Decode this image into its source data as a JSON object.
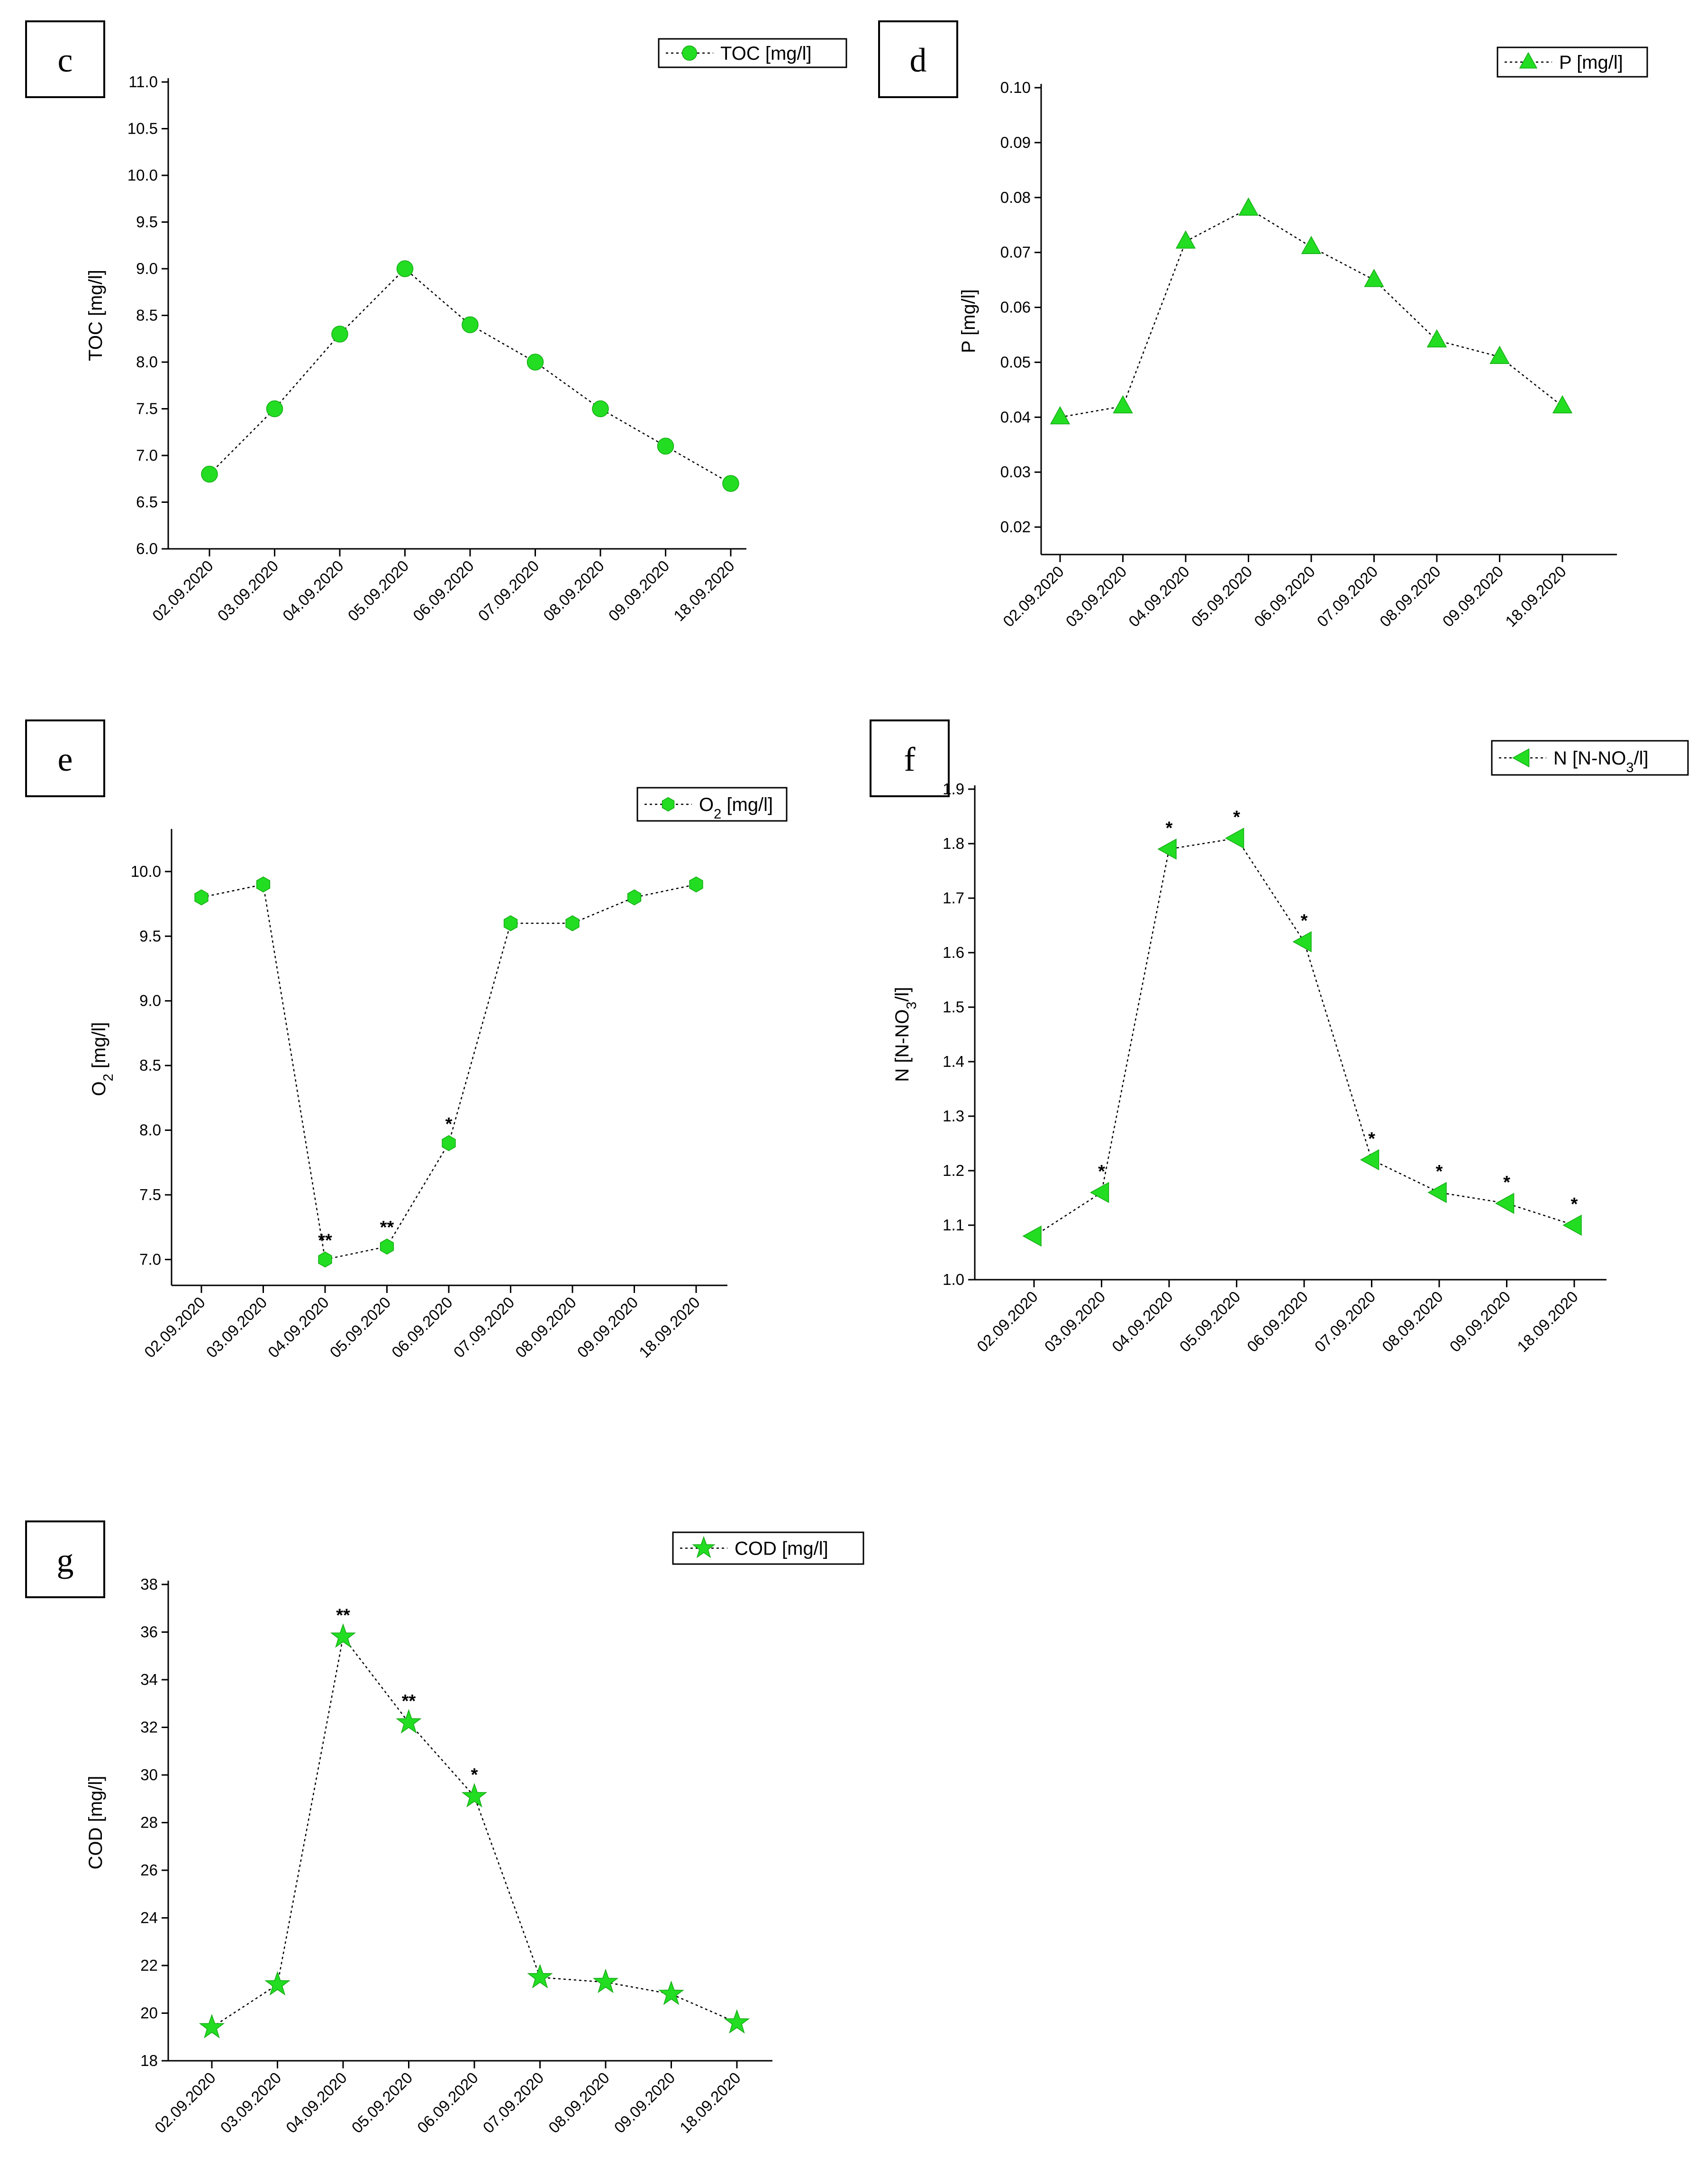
{
  "figure": {
    "marker_color": "#22dd22",
    "line_color": "#000000"
  },
  "chart_data": [
    {
      "id": "c",
      "type": "line",
      "panel_letter": "c",
      "ylabel": "TOC [mg/l]",
      "legend": "TOC [mg/l]",
      "marker": "circle",
      "categories": [
        "02.09.2020",
        "03.09.2020",
        "04.09.2020",
        "05.09.2020",
        "06.09.2020",
        "07.09.2020",
        "08.09.2020",
        "09.09.2020",
        "18.09.2020"
      ],
      "values": [
        6.8,
        7.5,
        8.3,
        9.0,
        8.4,
        8.0,
        7.5,
        7.1,
        6.7
      ],
      "annotations": [
        "",
        "",
        "",
        "",
        "",
        "",
        "",
        "",
        ""
      ],
      "ylim": [
        6.0,
        11.0
      ],
      "yticks": [
        "6.0",
        "6.5",
        "7.0",
        "7.5",
        "8.0",
        "8.5",
        "9.0",
        "9.5",
        "10.0",
        "10.5",
        "11.0"
      ]
    },
    {
      "id": "d",
      "type": "line",
      "panel_letter": "d",
      "ylabel": "P [mg/l]",
      "legend": "P [mg/l]",
      "marker": "triangle-up",
      "categories": [
        "02.09.2020",
        "03.09.2020",
        "04.09.2020",
        "05.09.2020",
        "06.09.2020",
        "07.09.2020",
        "08.09.2020",
        "09.09.2020",
        "18.09.2020"
      ],
      "values": [
        0.04,
        0.042,
        0.072,
        0.078,
        0.071,
        0.065,
        0.054,
        0.051,
        0.042
      ],
      "annotations": [
        "",
        "",
        "",
        "",
        "",
        "",
        "",
        "",
        ""
      ],
      "ylim": [
        0.015,
        0.1
      ],
      "yticks": [
        "0.02",
        "0.03",
        "0.04",
        "0.05",
        "0.06",
        "0.07",
        "0.08",
        "0.09",
        "0.10"
      ]
    },
    {
      "id": "e",
      "type": "line",
      "panel_letter": "e",
      "ylabel": "O₂ [mg/l]",
      "legend": "O₂ [mg/l]",
      "marker": "hexagon",
      "categories": [
        "02.09.2020",
        "03.09.2020",
        "04.09.2020",
        "05.09.2020",
        "06.09.2020",
        "07.09.2020",
        "08.09.2020",
        "09.09.2020",
        "18.09.2020"
      ],
      "values": [
        9.8,
        9.9,
        7.0,
        7.1,
        7.9,
        9.6,
        9.6,
        9.8,
        9.9
      ],
      "annotations": [
        "",
        "",
        "**",
        "**",
        "*",
        "",
        "",
        "",
        ""
      ],
      "ylim": [
        6.8,
        10.3
      ],
      "yticks": [
        "7.0",
        "7.5",
        "8.0",
        "8.5",
        "9.0",
        "9.5",
        "10.0"
      ]
    },
    {
      "id": "f",
      "type": "line",
      "panel_letter": "f",
      "ylabel": "N [N-NO₃/l]",
      "legend": "N [N-NO₃/l]",
      "marker": "triangle-left",
      "categories": [
        "02.09.2020",
        "03.09.2020",
        "04.09.2020",
        "05.09.2020",
        "06.09.2020",
        "07.09.2020",
        "08.09.2020",
        "09.09.2020",
        "18.09.2020"
      ],
      "values": [
        1.08,
        1.16,
        1.79,
        1.81,
        1.62,
        1.22,
        1.16,
        1.14,
        1.1
      ],
      "annotations": [
        "",
        "*",
        "*",
        "*",
        "*",
        "*",
        "*",
        "*",
        "*"
      ],
      "ylim": [
        1.0,
        1.9
      ],
      "yticks": [
        "1.0",
        "1.1",
        "1.2",
        "1.3",
        "1.4",
        "1.5",
        "1.6",
        "1.7",
        "1.8",
        "1.9"
      ]
    },
    {
      "id": "g",
      "type": "line",
      "panel_letter": "g",
      "ylabel": "COD [mg/l]",
      "legend": "COD [mg/l]",
      "marker": "star",
      "categories": [
        "02.09.2020",
        "03.09.2020",
        "04.09.2020",
        "05.09.2020",
        "06.09.2020",
        "07.09.2020",
        "08.09.2020",
        "09.09.2020",
        "18.09.2020"
      ],
      "values": [
        19.4,
        21.2,
        35.8,
        32.2,
        29.1,
        21.5,
        21.3,
        20.8,
        19.6
      ],
      "annotations": [
        "",
        "",
        "**",
        "**",
        "*",
        "",
        "",
        "",
        ""
      ],
      "ylim": [
        18,
        38
      ],
      "yticks": [
        "18",
        "20",
        "22",
        "24",
        "26",
        "28",
        "30",
        "32",
        "34",
        "36",
        "38"
      ]
    }
  ]
}
